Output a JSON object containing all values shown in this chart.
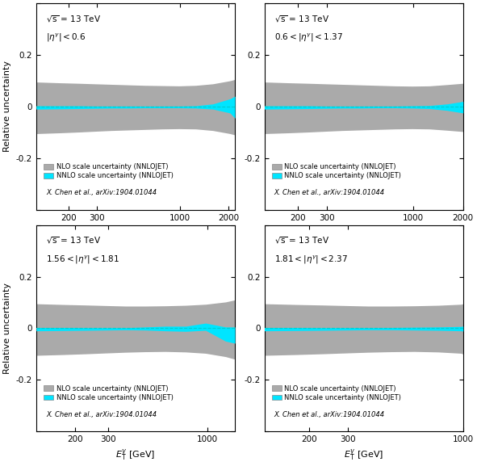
{
  "panels": [
    {
      "eta_label": "$|\\eta^{\\gamma}| < 0.6$",
      "xmin": 125,
      "xmax": 2200,
      "xticks": [
        200,
        300,
        1000,
        2000
      ],
      "nlo_x": [
        125,
        175,
        230,
        290,
        370,
        470,
        600,
        770,
        980,
        1250,
        1600,
        2050,
        2200
      ],
      "nlo_up": [
        0.095,
        0.092,
        0.09,
        0.088,
        0.086,
        0.084,
        0.082,
        0.081,
        0.08,
        0.082,
        0.088,
        0.1,
        0.105
      ],
      "nlo_dn": [
        -0.105,
        -0.102,
        -0.099,
        -0.096,
        -0.093,
        -0.091,
        -0.089,
        -0.087,
        -0.086,
        -0.087,
        -0.093,
        -0.105,
        -0.11
      ],
      "nnlo_x": [
        125,
        175,
        230,
        290,
        370,
        470,
        600,
        770,
        980,
        1250,
        1600,
        2050,
        2200
      ],
      "nnlo_up": [
        0.003,
        0.003,
        0.003,
        0.002,
        0.002,
        0.002,
        0.002,
        0.002,
        0.002,
        0.003,
        0.01,
        0.03,
        0.04
      ],
      "nnlo_dn": [
        -0.01,
        -0.009,
        -0.008,
        -0.007,
        -0.006,
        -0.006,
        -0.005,
        -0.005,
        -0.005,
        -0.006,
        -0.01,
        -0.025,
        -0.045
      ]
    },
    {
      "eta_label": "$0.6 < |\\eta^{\\gamma}| < 1.37$",
      "xmin": 125,
      "xmax": 2000,
      "xticks": [
        200,
        300,
        1000,
        2000
      ],
      "nlo_x": [
        125,
        175,
        230,
        290,
        370,
        470,
        600,
        770,
        980,
        1250,
        1600,
        2000
      ],
      "nlo_up": [
        0.095,
        0.092,
        0.09,
        0.088,
        0.086,
        0.084,
        0.082,
        0.08,
        0.079,
        0.08,
        0.085,
        0.09
      ],
      "nlo_dn": [
        -0.105,
        -0.102,
        -0.099,
        -0.096,
        -0.093,
        -0.091,
        -0.089,
        -0.087,
        -0.086,
        -0.087,
        -0.092,
        -0.097
      ],
      "nnlo_x": [
        125,
        175,
        230,
        290,
        370,
        470,
        600,
        770,
        980,
        1250,
        1600,
        2000
      ],
      "nnlo_up": [
        0.003,
        0.003,
        0.003,
        0.002,
        0.002,
        0.002,
        0.002,
        0.002,
        0.003,
        0.004,
        0.01,
        0.02
      ],
      "nnlo_dn": [
        -0.01,
        -0.009,
        -0.008,
        -0.007,
        -0.006,
        -0.006,
        -0.005,
        -0.005,
        -0.006,
        -0.008,
        -0.015,
        -0.025
      ]
    },
    {
      "eta_label": "$1.56 < |\\eta^{\\gamma}| < 1.81$",
      "xmin": 125,
      "xmax": 1400,
      "xticks": [
        200,
        300,
        1000
      ],
      "nlo_x": [
        125,
        175,
        230,
        290,
        370,
        470,
        600,
        770,
        980,
        1250,
        1400
      ],
      "nlo_up": [
        0.095,
        0.092,
        0.09,
        0.088,
        0.086,
        0.086,
        0.087,
        0.089,
        0.093,
        0.102,
        0.11
      ],
      "nlo_dn": [
        -0.105,
        -0.102,
        -0.099,
        -0.096,
        -0.093,
        -0.091,
        -0.09,
        -0.092,
        -0.097,
        -0.11,
        -0.12
      ],
      "nnlo_x": [
        125,
        175,
        230,
        290,
        370,
        470,
        600,
        770,
        980,
        1250,
        1400
      ],
      "nnlo_up": [
        0.003,
        0.003,
        0.002,
        0.002,
        0.002,
        0.005,
        0.008,
        0.008,
        0.02,
        0.005,
        0.005
      ],
      "nnlo_dn": [
        -0.01,
        -0.009,
        -0.008,
        -0.007,
        -0.006,
        -0.007,
        -0.01,
        -0.012,
        -0.008,
        -0.05,
        -0.058
      ]
    },
    {
      "eta_label": "$1.81 < |\\eta^{\\gamma}| < 2.37$",
      "xmin": 125,
      "xmax": 1000,
      "xticks": [
        200,
        300,
        1000
      ],
      "nlo_x": [
        125,
        175,
        230,
        290,
        370,
        470,
        600,
        770,
        980,
        1000
      ],
      "nlo_up": [
        0.095,
        0.092,
        0.09,
        0.088,
        0.086,
        0.086,
        0.087,
        0.089,
        0.093,
        0.095
      ],
      "nlo_dn": [
        -0.105,
        -0.102,
        -0.099,
        -0.096,
        -0.093,
        -0.091,
        -0.09,
        -0.092,
        -0.097,
        -0.1
      ],
      "nnlo_x": [
        125,
        175,
        230,
        290,
        370,
        470,
        600,
        770,
        980,
        1000
      ],
      "nnlo_up": [
        0.003,
        0.003,
        0.002,
        0.002,
        0.002,
        0.003,
        0.004,
        0.005,
        0.007,
        0.008
      ],
      "nnlo_dn": [
        -0.01,
        -0.009,
        -0.008,
        -0.007,
        -0.006,
        -0.006,
        -0.007,
        -0.008,
        -0.01,
        -0.011
      ]
    }
  ],
  "ylabel": "Relative uncertainty",
  "xlabel": "$E_{\\mathrm{T}}^{\\gamma}$ [GeV]",
  "ylim": [
    -0.4,
    0.4
  ],
  "yticks": [
    -0.4,
    -0.2,
    0.0,
    0.2,
    0.4
  ],
  "yticklabels": [
    "",
    "-0.2",
    "0",
    "0.2",
    ""
  ],
  "nlo_color": "#aaaaaa",
  "nnlo_color": "#00e5ff",
  "nlo_label": "NLO scale uncertainty (NNLOJET)",
  "nnlo_label": "NNLO scale uncertainty (NNLOJET)",
  "ref_label": "X. Chen et al., arXiv:1904.01044",
  "sqrt_s_line1": "$\\overline{\\rm s}$ = 13 TeV",
  "dashed_color": "#00cccc",
  "bg_color": "#ffffff"
}
